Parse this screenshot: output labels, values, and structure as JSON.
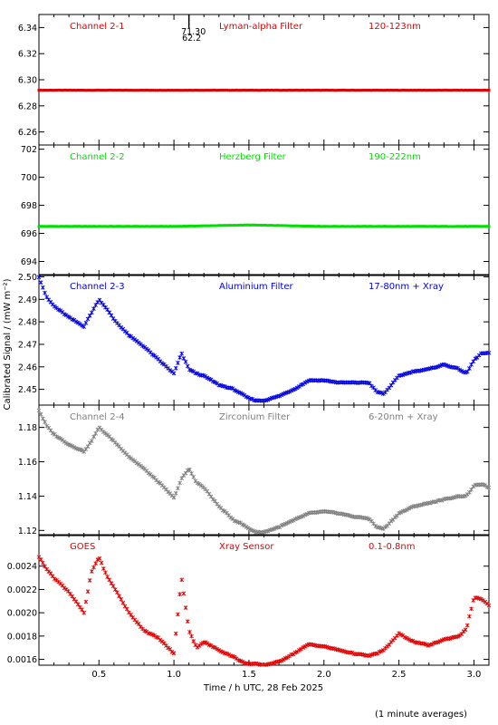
{
  "xlabel": "Time / h UTC, 28 Feb 2025",
  "ylabel": "Calibrated Signal / (mW m⁻²)",
  "footnote": "(1 minute averages)",
  "xlim": [
    0.1,
    3.1
  ],
  "xticks": [
    "0.5",
    "1.0",
    "1.5",
    "2.0",
    "2.5",
    "3.0"
  ],
  "xtick_values": [
    0.5,
    1.0,
    1.5,
    2.0,
    2.5,
    3.0
  ],
  "chart_data": [
    {
      "type": "scatter",
      "channel": "Channel 2-1",
      "filter": "Lyman-alpha Filter",
      "band": "120-123nm",
      "color": "#e00000",
      "ylim": [
        6.25,
        6.35
      ],
      "yticks": [
        6.26,
        6.28,
        6.3,
        6.32,
        6.34
      ],
      "ytick_labels": [
        "6.26",
        "6.28",
        "6.30",
        "6.32",
        "6.34"
      ],
      "spike_labels": [
        "71.30",
        "62.2"
      ],
      "x": [
        0.1,
        0.5,
        1.0,
        1.5,
        2.0,
        2.5,
        3.1
      ],
      "values": [
        6.292,
        6.292,
        6.292,
        6.292,
        6.292,
        6.292,
        6.292
      ]
    },
    {
      "type": "scatter",
      "channel": "Channel 2-2",
      "filter": "Herzberg Filter",
      "band": "190-222nm",
      "color": "#00e000",
      "ylim": [
        693,
        702.3
      ],
      "yticks": [
        694,
        696,
        698,
        700,
        702
      ],
      "ytick_labels": [
        "694",
        "696",
        "698",
        "700",
        "702"
      ],
      "x": [
        0.1,
        0.5,
        1.0,
        1.5,
        2.0,
        2.5,
        3.1
      ],
      "values": [
        696.5,
        696.5,
        696.5,
        696.6,
        696.5,
        696.5,
        696.5
      ]
    },
    {
      "type": "scatter",
      "channel": "Channel 2-3",
      "filter": "Aluminium Filter",
      "band": "17-80nm + Xray",
      "color": "#0000e0",
      "ylim": [
        2.443,
        2.501
      ],
      "yticks": [
        2.45,
        2.46,
        2.47,
        2.48,
        2.49,
        2.5
      ],
      "ytick_labels": [
        "2.45",
        "2.46",
        "2.47",
        "2.48",
        "2.49",
        "2.50"
      ],
      "x": [
        0.1,
        0.15,
        0.2,
        0.3,
        0.4,
        0.45,
        0.5,
        0.55,
        0.6,
        0.7,
        0.8,
        0.9,
        1.0,
        1.05,
        1.1,
        1.15,
        1.2,
        1.3,
        1.4,
        1.45,
        1.5,
        1.55,
        1.6,
        1.7,
        1.8,
        1.9,
        2.0,
        2.1,
        2.2,
        2.3,
        2.35,
        2.4,
        2.5,
        2.6,
        2.7,
        2.8,
        2.9,
        2.95,
        3.0,
        3.05,
        3.1
      ],
      "values": [
        2.5,
        2.491,
        2.487,
        2.482,
        2.478,
        2.484,
        2.49,
        2.486,
        2.481,
        2.474,
        2.469,
        2.463,
        2.457,
        2.466,
        2.459,
        2.457,
        2.456,
        2.452,
        2.45,
        2.448,
        2.446,
        2.445,
        2.445,
        2.447,
        2.45,
        2.454,
        2.454,
        2.453,
        2.453,
        2.453,
        2.449,
        2.448,
        2.456,
        2.458,
        2.459,
        2.461,
        2.459,
        2.457,
        2.463,
        2.466,
        2.466
      ]
    },
    {
      "type": "scatter",
      "channel": "Channel 2-4",
      "filter": "Zirconium Filter",
      "band": "6-20nm + Xray",
      "color": "#808080",
      "ylim": [
        1.117,
        1.193
      ],
      "yticks": [
        1.12,
        1.14,
        1.16,
        1.18
      ],
      "ytick_labels": [
        "1.12",
        "1.14",
        "1.16",
        "1.18"
      ],
      "x": [
        0.1,
        0.15,
        0.2,
        0.3,
        0.4,
        0.45,
        0.5,
        0.55,
        0.6,
        0.7,
        0.8,
        0.9,
        1.0,
        1.05,
        1.1,
        1.15,
        1.2,
        1.3,
        1.4,
        1.45,
        1.5,
        1.55,
        1.6,
        1.7,
        1.8,
        1.9,
        2.0,
        2.1,
        2.2,
        2.3,
        2.35,
        2.4,
        2.5,
        2.6,
        2.7,
        2.8,
        2.9,
        2.95,
        3.0,
        3.05,
        3.1
      ],
      "values": [
        1.19,
        1.181,
        1.176,
        1.17,
        1.166,
        1.172,
        1.18,
        1.176,
        1.172,
        1.163,
        1.156,
        1.148,
        1.139,
        1.15,
        1.156,
        1.148,
        1.145,
        1.134,
        1.126,
        1.124,
        1.121,
        1.119,
        1.119,
        1.122,
        1.126,
        1.13,
        1.131,
        1.13,
        1.128,
        1.127,
        1.122,
        1.121,
        1.13,
        1.134,
        1.136,
        1.138,
        1.14,
        1.14,
        1.146,
        1.147,
        1.145
      ]
    },
    {
      "type": "scatter",
      "channel": "GOES",
      "filter": "Xray Sensor",
      "band": "0.1-0.8nm",
      "color": "#e00000",
      "ylim": [
        0.00155,
        0.00267
      ],
      "yticks": [
        0.0016,
        0.0018,
        0.002,
        0.0022,
        0.0024
      ],
      "ytick_labels": [
        "0.0016",
        "0.0018",
        "0.0020",
        "0.0022",
        "0.0024"
      ],
      "x": [
        0.1,
        0.15,
        0.2,
        0.3,
        0.4,
        0.45,
        0.5,
        0.55,
        0.6,
        0.7,
        0.8,
        0.9,
        1.0,
        1.05,
        1.1,
        1.15,
        1.2,
        1.3,
        1.4,
        1.45,
        1.5,
        1.55,
        1.6,
        1.7,
        1.8,
        1.9,
        2.0,
        2.1,
        2.2,
        2.3,
        2.35,
        2.4,
        2.5,
        2.6,
        2.7,
        2.8,
        2.9,
        2.95,
        3.0,
        3.05,
        3.1
      ],
      "values": [
        0.00248,
        0.00238,
        0.0023,
        0.00218,
        0.002,
        0.00235,
        0.00248,
        0.00232,
        0.00222,
        0.002,
        0.00185,
        0.00178,
        0.00165,
        0.0023,
        0.00185,
        0.0017,
        0.00175,
        0.00168,
        0.00162,
        0.00158,
        0.00156,
        0.00156,
        0.00155,
        0.00158,
        0.00165,
        0.00173,
        0.00171,
        0.00168,
        0.00165,
        0.00163,
        0.00165,
        0.00168,
        0.00182,
        0.00175,
        0.00172,
        0.00177,
        0.0018,
        0.00186,
        0.00213,
        0.00212,
        0.00206
      ]
    }
  ]
}
